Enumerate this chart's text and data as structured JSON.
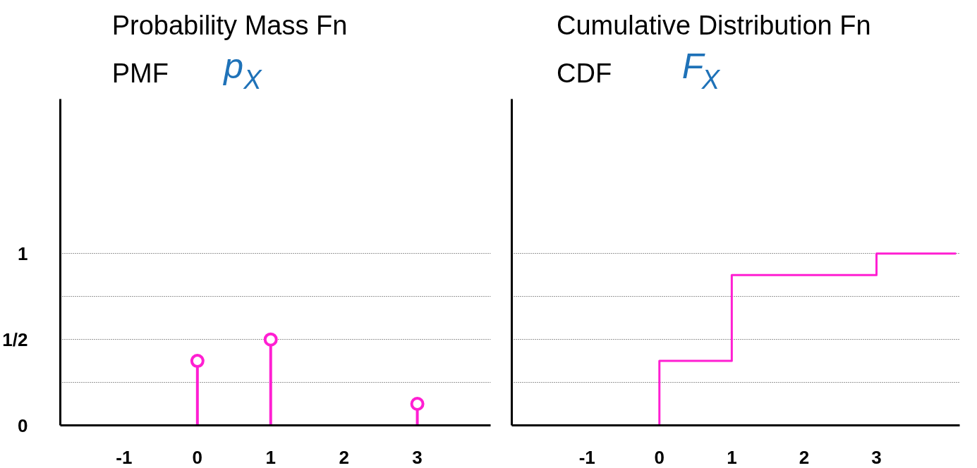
{
  "chart_data": [
    {
      "type": "lollipop",
      "title": "Probability Mass Fn",
      "subtitle": "PMF",
      "annotations": [
        "p$_{X}$"
      ],
      "x": [
        0,
        1,
        3
      ],
      "values": [
        0.375,
        0.5,
        0.125
      ],
      "color": "#ff1fd2",
      "marker": "circle",
      "xlim": [
        -1.87,
        4.0
      ],
      "ylim": [
        0,
        1.9
      ],
      "xticks": [
        -1,
        0,
        1,
        2,
        3
      ],
      "yticks": [
        0,
        {
          "value": 0.25,
          "label": null
        },
        {
          "value": 0.5,
          "label": "1/2"
        },
        {
          "value": 0.75,
          "label": null
        },
        1
      ],
      "grid": "y"
    },
    {
      "type": "step",
      "title": "Cumulative Distribution Fn",
      "subtitle": "CDF",
      "annotations": [
        "F$_{X}$"
      ],
      "x": [
        -2,
        0,
        1,
        3,
        4.1
      ],
      "values": [
        0,
        0.375,
        0.875,
        1,
        1
      ],
      "color": "#ff1fd2",
      "xlim": [
        -2.04,
        4.15
      ],
      "ylim": [
        0,
        1.9
      ],
      "xticks": [
        -1,
        0,
        1,
        2,
        3
      ],
      "yticks": [
        {
          "value": 0,
          "label": null
        },
        {
          "value": 0.25,
          "label": null
        },
        {
          "value": 0.5,
          "label": null
        },
        {
          "value": 0.75,
          "label": null
        },
        {
          "value": 1,
          "label": null
        }
      ],
      "grid": "y",
      "tick_labels": "x"
    }
  ]
}
